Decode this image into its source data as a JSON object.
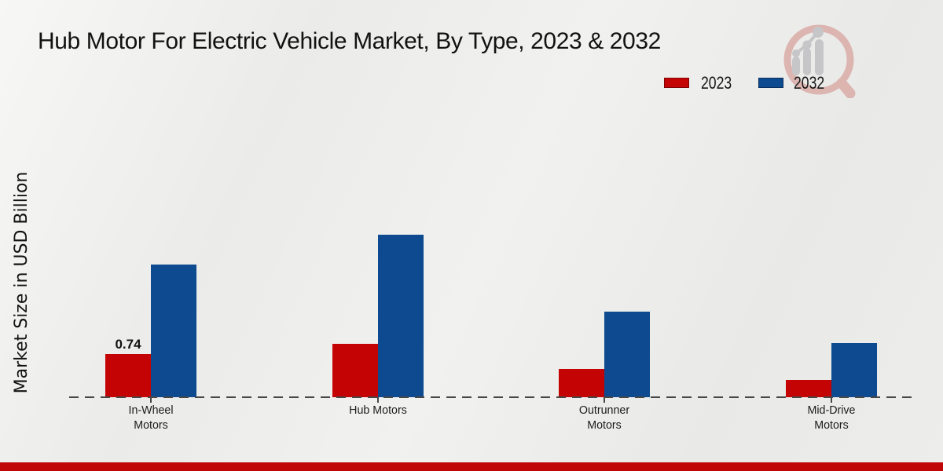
{
  "title": "Hub Motor For Electric Vehicle Market, By Type, 2023 & 2032",
  "y_axis_label": "Market Size in USD Billion",
  "legend": {
    "items": [
      {
        "label": "2023",
        "color": "#c40404"
      },
      {
        "label": "2032",
        "color": "#0d4a8f"
      }
    ]
  },
  "watermark": {
    "name": "market-research-logo-watermark",
    "ring_color": "#dcb5b1",
    "glyph_color": "#c6c6c8"
  },
  "colors": {
    "series_2023": "#c40404",
    "series_2032": "#0d4a8f",
    "baseline": "#474747",
    "bottom_strip": "#c00606",
    "background": "#eeeeec"
  },
  "chart_data": {
    "type": "bar",
    "title": "Hub Motor For Electric Vehicle Market, By Type, 2023 & 2032",
    "xlabel": "",
    "ylabel": "Market Size in USD Billion",
    "ylim": [
      0,
      3
    ],
    "grid": false,
    "legend_position": "top-right",
    "categories": [
      "In-Wheel Motors",
      "Hub Motors",
      "Outrunner Motors",
      "Mid-Drive Motors"
    ],
    "category_lines": [
      [
        "In-Wheel",
        "Motors"
      ],
      [
        "Hub Motors"
      ],
      [
        "Outrunner",
        "Motors"
      ],
      [
        "Mid-Drive",
        "Motors"
      ]
    ],
    "series": [
      {
        "name": "2023",
        "color": "#c40404",
        "values": [
          0.74,
          0.91,
          0.48,
          0.3
        ],
        "data_labels": [
          "0.74",
          "",
          "",
          ""
        ]
      },
      {
        "name": "2032",
        "color": "#0d4a8f",
        "values": [
          2.27,
          2.78,
          1.46,
          0.93
        ],
        "data_labels": [
          "",
          "",
          "",
          ""
        ]
      }
    ]
  }
}
